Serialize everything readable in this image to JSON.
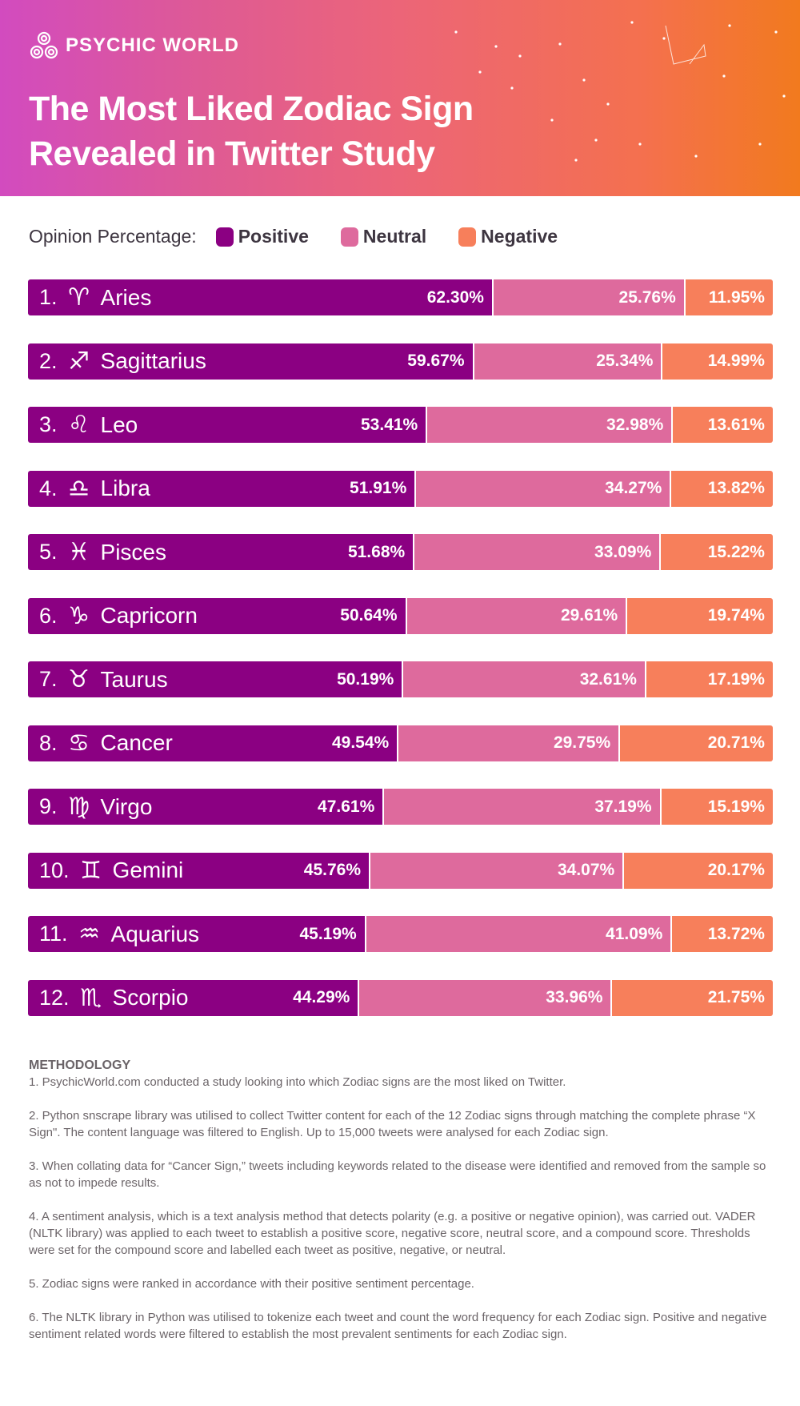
{
  "brand": "PSYCHIC WORLD",
  "title_line1": "The Most Liked Zodiac Sign",
  "title_line2": "Revealed in Twitter Study",
  "legend": {
    "label": "Opinion Percentage:",
    "items": [
      "Positive",
      "Neutral",
      "Negative"
    ]
  },
  "colors": {
    "positive": "#8b0082",
    "neutral": "#de6a9d",
    "negative": "#f77f5b"
  },
  "chart_data": {
    "type": "bar",
    "stacked": true,
    "orientation": "horizontal",
    "series_names": [
      "Positive",
      "Neutral",
      "Negative"
    ],
    "rows": [
      {
        "rank": "1.",
        "glyph": "♈︎",
        "sign": "Aries",
        "values": [
          62.3,
          25.76,
          11.95
        ],
        "labels": [
          "62.30%",
          "25.76%",
          "11.95%"
        ]
      },
      {
        "rank": "2.",
        "glyph": "♐︎",
        "sign": "Sagittarius",
        "values": [
          59.67,
          25.34,
          14.99
        ],
        "labels": [
          "59.67%",
          "25.34%",
          "14.99%"
        ]
      },
      {
        "rank": "3.",
        "glyph": "♌︎",
        "sign": "Leo",
        "values": [
          53.41,
          32.98,
          13.61
        ],
        "labels": [
          "53.41%",
          "32.98%",
          "13.61%"
        ]
      },
      {
        "rank": "4.",
        "glyph": "♎︎",
        "sign": "Libra",
        "values": [
          51.91,
          34.27,
          13.82
        ],
        "labels": [
          "51.91%",
          "34.27%",
          "13.82%"
        ]
      },
      {
        "rank": "5.",
        "glyph": "♓︎",
        "sign": "Pisces",
        "values": [
          51.68,
          33.09,
          15.22
        ],
        "labels": [
          "51.68%",
          "33.09%",
          "15.22%"
        ]
      },
      {
        "rank": "6.",
        "glyph": "♑︎",
        "sign": "Capricorn",
        "values": [
          50.64,
          29.61,
          19.74
        ],
        "labels": [
          "50.64%",
          "29.61%",
          "19.74%"
        ]
      },
      {
        "rank": "7.",
        "glyph": "♉︎",
        "sign": "Taurus",
        "values": [
          50.19,
          32.61,
          17.19
        ],
        "labels": [
          "50.19%",
          "32.61%",
          "17.19%"
        ]
      },
      {
        "rank": "8.",
        "glyph": "♋︎",
        "sign": "Cancer",
        "values": [
          49.54,
          29.75,
          20.71
        ],
        "labels": [
          "49.54%",
          "29.75%",
          "20.71%"
        ]
      },
      {
        "rank": "9.",
        "glyph": "♍︎",
        "sign": "Virgo",
        "values": [
          47.61,
          37.19,
          15.19
        ],
        "labels": [
          "47.61%",
          "37.19%",
          "15.19%"
        ]
      },
      {
        "rank": "10.",
        "glyph": "♊︎",
        "sign": "Gemini",
        "values": [
          45.76,
          34.07,
          20.17
        ],
        "labels": [
          "45.76%",
          "34.07%",
          "20.17%"
        ]
      },
      {
        "rank": "11.",
        "glyph": "♒︎",
        "sign": "Aquarius",
        "values": [
          45.19,
          41.09,
          13.72
        ],
        "labels": [
          "45.19%",
          "41.09%",
          "13.72%"
        ]
      },
      {
        "rank": "12.",
        "glyph": "♏︎",
        "sign": "Scorpio",
        "values": [
          44.29,
          33.96,
          21.75
        ],
        "labels": [
          "44.29%",
          "33.96%",
          "21.75%"
        ]
      }
    ]
  },
  "methodology": {
    "heading": "METHODOLOGY",
    "items": [
      "1. PsychicWorld.com conducted a study looking into which Zodiac signs are the most liked on Twitter.",
      "2. Python snscrape library was utilised to collect Twitter content for each of the 12 Zodiac signs through matching the complete phrase “X Sign\". The content language was filtered to English. Up to 15,000 tweets were analysed for each Zodiac sign.",
      "3. When collating data for “Cancer Sign,” tweets including keywords related to the disease were identified and removed from the sample so as not to impede results.",
      "4. A sentiment analysis, which is a text analysis method that detects polarity (e.g. a positive or negative opinion), was carried out. VADER (NLTK library) was applied to each tweet to establish a positive score, negative score, neutral score, and a compound score. Thresholds were set for the compound score and labelled each tweet as positive, negative, or neutral.",
      "5. Zodiac signs were ranked in accordance with their positive sentiment percentage.",
      "6. The NLTK library in Python was utilised to tokenize each tweet and count the word frequency for each Zodiac sign. Positive and negative sentiment related words were filtered to establish the most prevalent sentiments for each Zodiac sign."
    ]
  }
}
